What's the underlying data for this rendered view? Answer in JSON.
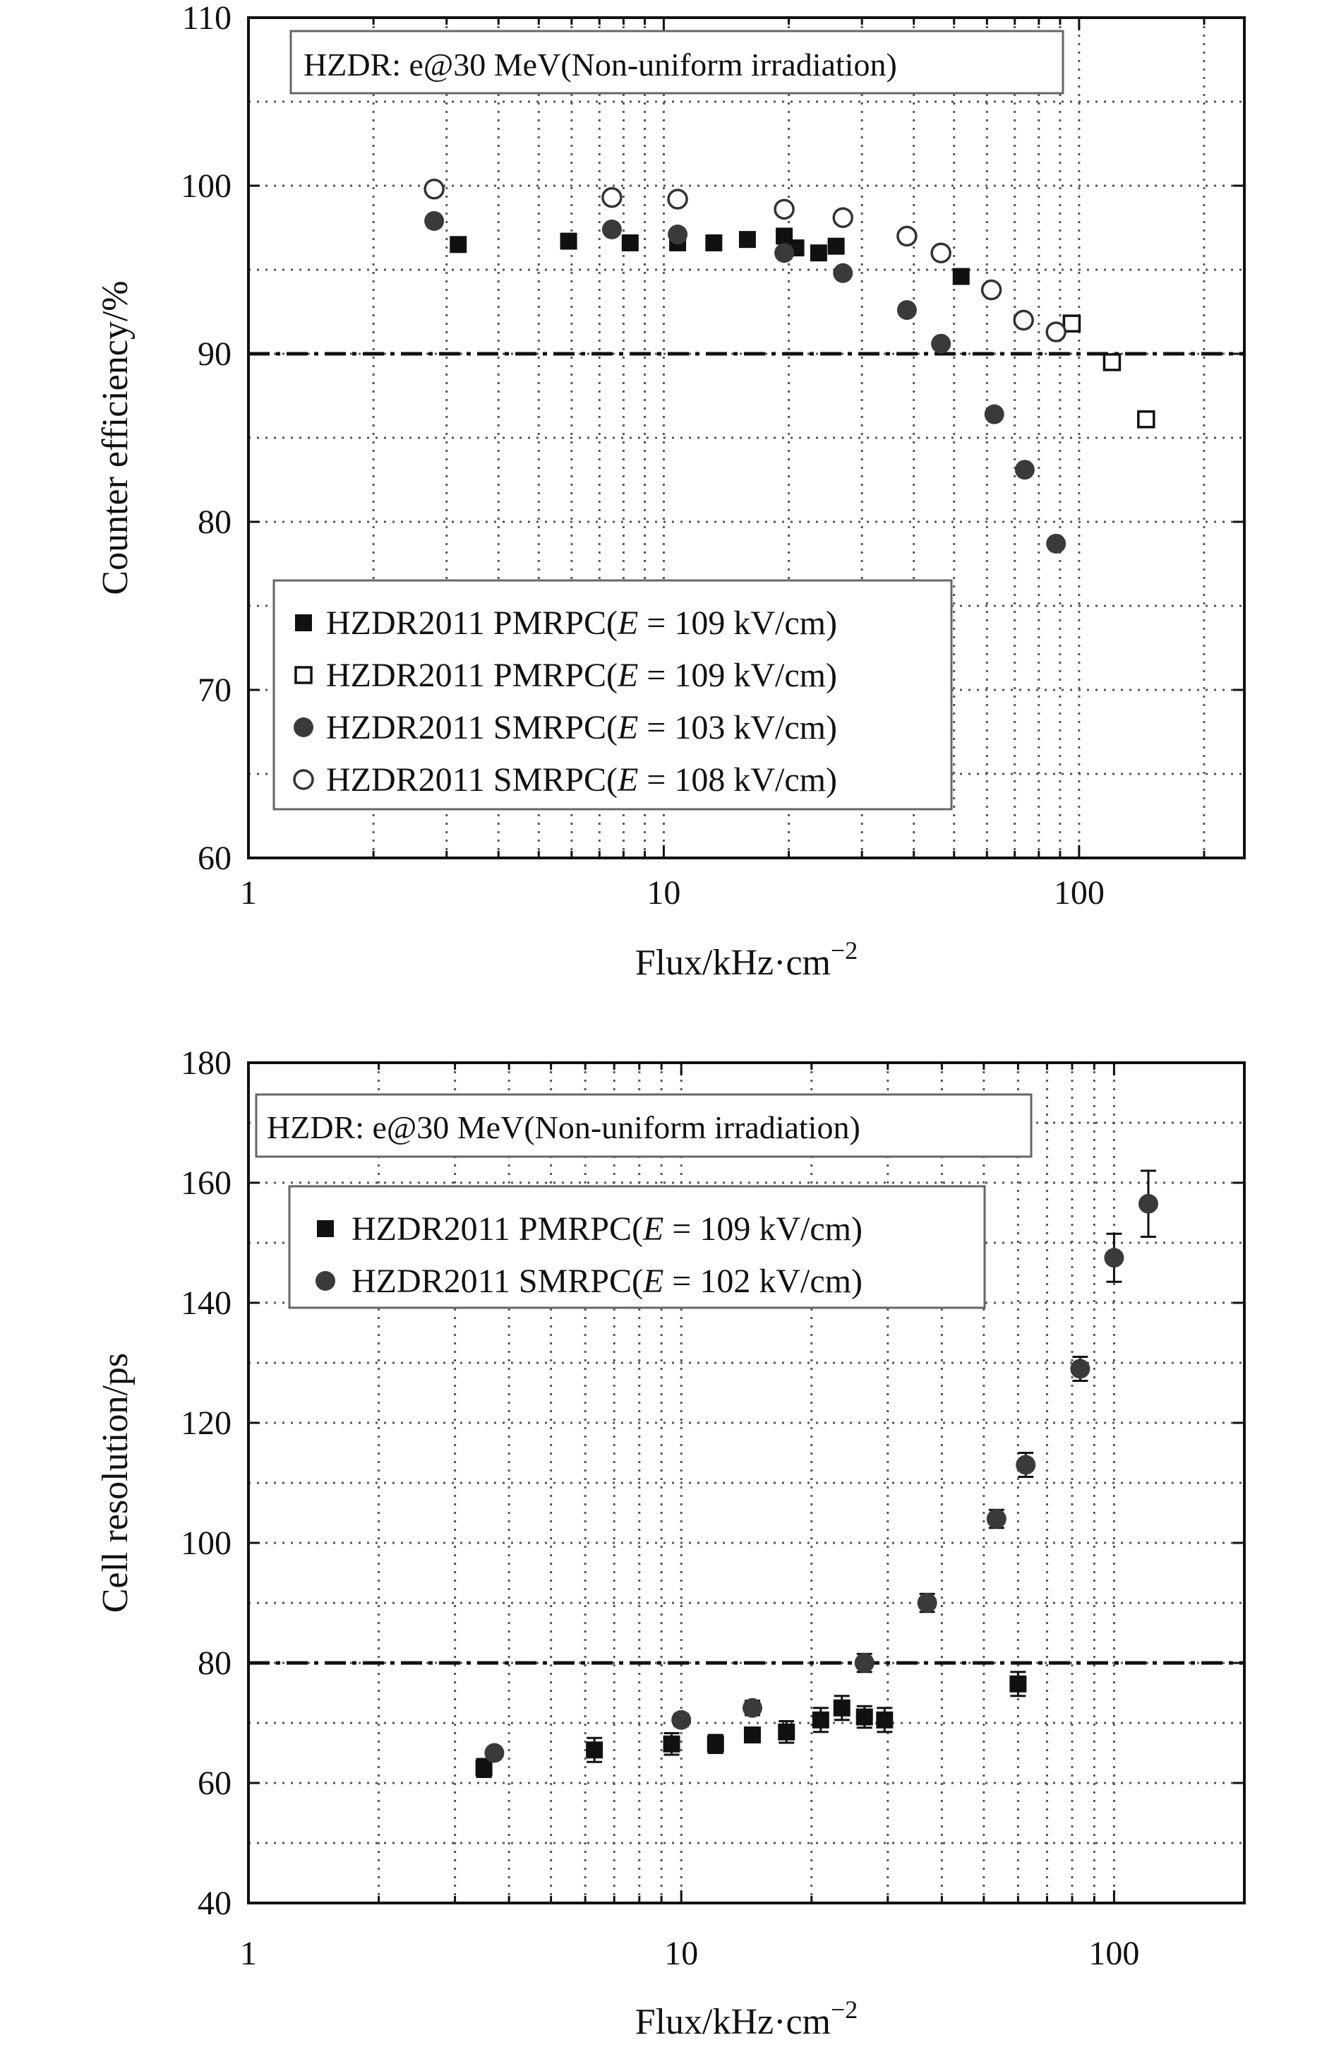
{
  "chart_data": [
    {
      "type": "scatter",
      "title": "",
      "annotation": "HZDR: e@30 MeV(Non-uniform irradiation)",
      "xlabel": "Flux/kHz·cm",
      "xlabel_sup": "−2",
      "ylabel": "Counter efficiency/%",
      "xscale": "log",
      "xlim": [
        1,
        250
      ],
      "ylim": [
        60,
        110
      ],
      "xticks": [
        1,
        10,
        100
      ],
      "xtick_labels": [
        "1",
        "10",
        "100"
      ],
      "yticks": [
        60,
        70,
        80,
        90,
        100,
        110
      ],
      "ytick_labels": [
        "60",
        "70",
        "80",
        "90",
        "100",
        "110"
      ],
      "grid": true,
      "reference_line": 90,
      "legend_position": "bottom-left",
      "series": [
        {
          "name": "HZDR2011 PMRPC(E = 109 kV/cm)",
          "legend": {
            "pre": "HZDR2011 PMRPC(",
            "var": "E",
            "post": " = 109 kV/cm)"
          },
          "marker": "filled-square",
          "x": [
            3.2,
            5.9,
            8.3,
            10.8,
            13.2,
            15.9,
            19.5,
            20.8,
            23.6,
            26.0,
            52.0
          ],
          "y": [
            96.5,
            96.7,
            96.6,
            96.6,
            96.6,
            96.8,
            97.0,
            96.3,
            96.0,
            96.4,
            94.6
          ]
        },
        {
          "name": "HZDR2011 PMRPC(E = 109 kV/cm)",
          "legend": {
            "pre": "HZDR2011 PMRPC(",
            "var": "E",
            "post": " = 109 kV/cm)"
          },
          "marker": "open-square",
          "x": [
            96.0,
            120.0,
            145.0
          ],
          "y": [
            91.8,
            89.5,
            86.1
          ]
        },
        {
          "name": "HZDR2011 SMRPC(E = 103 kV/cm)",
          "legend": {
            "pre": "HZDR2011 SMRPC(",
            "var": "E",
            "post": " = 103 kV/cm)"
          },
          "marker": "filled-circle",
          "x": [
            2.8,
            7.5,
            10.8,
            19.5,
            27.0,
            38.5,
            46.5,
            62.5,
            74.0,
            88.0
          ],
          "y": [
            97.9,
            97.4,
            97.1,
            96.0,
            94.8,
            92.6,
            90.6,
            86.4,
            83.1,
            78.7
          ]
        },
        {
          "name": "HZDR2011 SMRPC(E = 108 kV/cm)",
          "legend": {
            "pre": "HZDR2011 SMRPC(",
            "var": "E",
            "post": " = 108 kV/cm)"
          },
          "marker": "open-circle",
          "x": [
            2.8,
            7.5,
            10.8,
            19.5,
            27.0,
            38.5,
            46.5,
            61.5,
            73.5,
            88.0
          ],
          "y": [
            99.8,
            99.3,
            99.2,
            98.6,
            98.1,
            97.0,
            96.0,
            93.8,
            92.0,
            91.3
          ]
        }
      ]
    },
    {
      "type": "scatter",
      "title": "",
      "annotation": "HZDR: e@30 MeV(Non-uniform irradiation)",
      "xlabel": "Flux/kHz·cm",
      "xlabel_sup": "−2",
      "ylabel": "Cell resolution/ps",
      "xscale": "log",
      "xlim": [
        1,
        200
      ],
      "ylim": [
        40,
        180
      ],
      "xticks": [
        1,
        10,
        100
      ],
      "xtick_labels": [
        "1",
        "10",
        "100"
      ],
      "yticks": [
        40,
        60,
        80,
        100,
        120,
        140,
        160,
        180
      ],
      "ytick_labels": [
        "40",
        "60",
        "80",
        "100",
        "120",
        "140",
        "160",
        "180"
      ],
      "grid": true,
      "reference_line": 80,
      "legend_position": "top-left",
      "series": [
        {
          "name": "HZDR2011 PMRPC(E = 109 kV/cm)",
          "legend": {
            "pre": "HZDR2011 PMRPC(",
            "var": "E",
            "post": " = 109 kV/cm)"
          },
          "marker": "filled-square",
          "x": [
            3.5,
            6.3,
            9.5,
            12.0,
            14.6,
            17.5,
            21.0,
            23.5,
            26.5,
            29.5,
            60.0
          ],
          "y": [
            62.5,
            65.5,
            66.5,
            66.5,
            68.0,
            68.5,
            70.5,
            72.5,
            71.0,
            70.5,
            76.5
          ],
          "err": [
            1.5,
            2.0,
            1.8,
            1.5,
            1.2,
            1.8,
            2.0,
            2.0,
            1.8,
            2.0,
            2.0
          ]
        },
        {
          "name": "HZDR2011 SMRPC(E = 102 kV/cm)",
          "legend": {
            "pre": "HZDR2011 SMRPC(",
            "var": "E",
            "post": " = 102 kV/cm)"
          },
          "marker": "filled-circle",
          "x": [
            3.7,
            10.0,
            14.6,
            26.5,
            37.0,
            53.5,
            62.5,
            83.5,
            100.0,
            120.0
          ],
          "y": [
            65.0,
            70.5,
            72.5,
            80.0,
            90.0,
            104.0,
            113.0,
            129.0,
            147.5,
            156.5
          ],
          "err": [
            0.8,
            1.0,
            1.2,
            1.5,
            1.5,
            1.5,
            2.0,
            2.0,
            4.0,
            5.5
          ]
        }
      ]
    }
  ]
}
